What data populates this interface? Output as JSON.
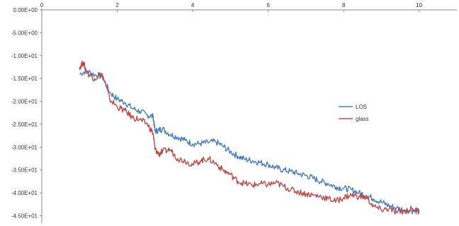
{
  "chart_data": {
    "type": "line",
    "title": "",
    "xlabel": "",
    "ylabel": "",
    "xlim": [
      0,
      11
    ],
    "ylim": [
      -46,
      0
    ],
    "x_ticks": [
      0,
      2,
      4,
      6,
      8,
      10
    ],
    "x_tick_labels": [
      "0",
      "2",
      "4",
      "6",
      "8",
      "10"
    ],
    "y_ticks": [
      0,
      -5,
      -10,
      -15,
      -20,
      -25,
      -30,
      -35,
      -40,
      -45
    ],
    "y_tick_labels": [
      "0.00E+00",
      "-5.00E+00",
      "-1.00E+01",
      "-1.50E+01",
      "-2.00E+01",
      "-2.50E+01",
      "-3.00E+01",
      "-3.50E+01",
      "-4.00E+01",
      "-4.50E+01"
    ],
    "grid": false,
    "legend_position": "right",
    "series": [
      {
        "name": "LOS",
        "color": "#4a7ebb",
        "x": [
          1.0,
          1.2,
          1.4,
          1.6,
          1.8,
          2.0,
          2.2,
          2.4,
          2.6,
          2.8,
          2.95,
          3.0,
          3.1,
          3.2,
          3.4,
          3.6,
          3.8,
          4.0,
          4.2,
          4.4,
          4.6,
          4.8,
          5.0,
          5.2,
          5.4,
          5.6,
          5.8,
          6.0,
          6.2,
          6.4,
          6.6,
          6.8,
          7.0,
          7.2,
          7.4,
          7.6,
          7.8,
          8.0,
          8.2,
          8.4,
          8.6,
          8.8,
          9.0,
          9.2,
          9.4,
          9.6,
          9.8,
          10.0
        ],
        "y": [
          -14.0,
          -13.3,
          -14.2,
          -14.5,
          -18.0,
          -19.5,
          -20.2,
          -21.5,
          -22.2,
          -23.0,
          -23.3,
          -26.5,
          -26.3,
          -26.0,
          -27.2,
          -27.8,
          -28.5,
          -29.3,
          -29.2,
          -29.0,
          -28.8,
          -29.8,
          -31.0,
          -32.0,
          -32.7,
          -33.0,
          -33.4,
          -33.8,
          -34.5,
          -35.0,
          -35.3,
          -35.8,
          -36.2,
          -36.8,
          -37.5,
          -38.0,
          -38.7,
          -39.0,
          -39.3,
          -40.0,
          -40.5,
          -41.3,
          -42.0,
          -42.8,
          -43.3,
          -43.7,
          -43.9,
          -44.1
        ]
      },
      {
        "name": "glass",
        "color": "#be4b48",
        "x": [
          1.0,
          1.1,
          1.2,
          1.4,
          1.6,
          1.8,
          2.0,
          2.2,
          2.4,
          2.6,
          2.8,
          2.95,
          3.0,
          3.1,
          3.2,
          3.4,
          3.6,
          3.8,
          4.0,
          4.2,
          4.4,
          4.6,
          4.8,
          5.0,
          5.2,
          5.4,
          5.6,
          5.8,
          6.0,
          6.2,
          6.4,
          6.6,
          6.8,
          7.0,
          7.2,
          7.4,
          7.6,
          7.8,
          8.0,
          8.2,
          8.4,
          8.6,
          8.8,
          9.0,
          9.2,
          9.4,
          9.6,
          9.8,
          10.0
        ],
        "y": [
          -12.5,
          -11.5,
          -13.8,
          -15.0,
          -14.0,
          -19.5,
          -21.2,
          -22.0,
          -23.5,
          -24.0,
          -25.0,
          -27.0,
          -30.5,
          -31.5,
          -31.0,
          -30.5,
          -32.5,
          -33.0,
          -33.8,
          -33.0,
          -32.5,
          -33.5,
          -35.0,
          -36.0,
          -37.5,
          -38.0,
          -38.3,
          -38.0,
          -38.2,
          -37.8,
          -38.5,
          -39.3,
          -39.8,
          -40.2,
          -40.5,
          -40.8,
          -41.3,
          -41.8,
          -41.0,
          -40.5,
          -40.8,
          -41.0,
          -43.0,
          -43.7,
          -43.5,
          -44.3,
          -44.0,
          -43.5,
          -44.0
        ]
      }
    ]
  }
}
